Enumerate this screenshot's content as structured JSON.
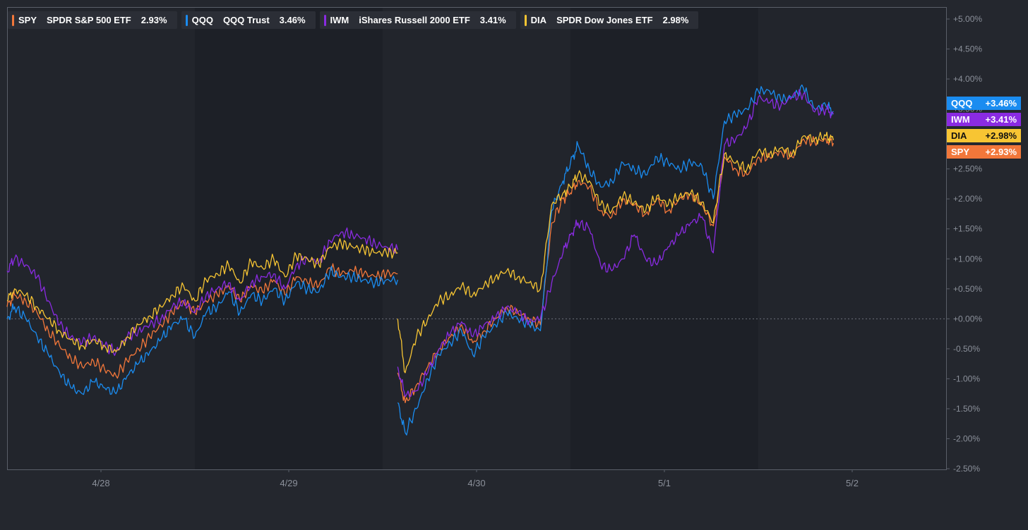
{
  "chart_data": {
    "type": "line",
    "title": "",
    "xlabel": "",
    "ylabel": "",
    "ylim": [
      -2.5,
      5.0
    ],
    "yticks": [
      "+5.00%",
      "+4.50%",
      "+4.00%",
      "+3.50%",
      "+3.00%",
      "+2.50%",
      "+2.00%",
      "+1.50%",
      "+1.00%",
      "+0.50%",
      "+0.00%",
      "-0.50%",
      "-1.00%",
      "-1.50%",
      "-2.00%",
      "-2.50%"
    ],
    "xticks": [
      "4/28",
      "4/29",
      "4/30",
      "5/1",
      "5/2"
    ],
    "xlim": [
      0,
      5
    ],
    "zero_line": true,
    "series": [
      {
        "ticker": "SPY",
        "name": "SPDR S&P 500 ETF",
        "last": "2.93%",
        "badge": "+2.93%",
        "color": "#f2773a",
        "badge_text_color": "#ffffff",
        "segments": [
          {
            "x": [
              0.0,
              0.04,
              0.1,
              0.16,
              0.22,
              0.28,
              0.34,
              0.4,
              0.46,
              0.52,
              0.58,
              0.64,
              0.7,
              0.76,
              0.82,
              0.88,
              0.94,
              1.0,
              1.06,
              1.12,
              1.18,
              1.24,
              1.3,
              1.36,
              1.42,
              1.48,
              1.54,
              1.6,
              1.66,
              1.72,
              1.78,
              1.84,
              1.9,
              1.96,
              2.02,
              2.08
            ],
            "y": [
              0.2,
              0.4,
              0.3,
              0.1,
              -0.2,
              -0.45,
              -0.65,
              -0.8,
              -0.7,
              -0.85,
              -0.95,
              -0.7,
              -0.5,
              -0.3,
              -0.1,
              0.1,
              0.3,
              0.1,
              0.3,
              0.4,
              0.55,
              0.3,
              0.55,
              0.45,
              0.65,
              0.4,
              0.7,
              0.6,
              0.55,
              0.85,
              0.75,
              0.8,
              0.75,
              0.7,
              0.75,
              0.75
            ]
          },
          {
            "x": [
              2.08,
              2.12,
              2.18,
              2.24,
              2.3,
              2.36,
              2.42,
              2.48,
              2.54,
              2.6,
              2.66,
              2.72,
              2.78,
              2.84,
              2.9,
              2.96,
              3.0,
              3.04,
              3.1,
              3.16,
              3.22,
              3.28,
              3.34,
              3.4,
              3.46,
              3.52,
              3.58,
              3.64,
              3.7,
              3.76,
              3.82,
              3.88,
              3.94,
              4.0,
              4.06,
              4.12,
              4.18,
              4.24,
              4.3,
              4.36,
              4.4
            ],
            "y": [
              -0.9,
              -1.4,
              -1.1,
              -0.8,
              -0.5,
              -0.3,
              -0.1,
              -0.4,
              -0.2,
              0.0,
              0.2,
              0.1,
              0.0,
              -0.1,
              1.6,
              2.0,
              2.1,
              2.3,
              2.2,
              1.8,
              1.7,
              2.0,
              1.9,
              1.75,
              2.0,
              1.8,
              2.0,
              2.1,
              1.9,
              1.55,
              2.7,
              2.5,
              2.4,
              2.7,
              2.7,
              2.8,
              2.7,
              3.0,
              2.95,
              3.0,
              2.93
            ]
          }
        ]
      },
      {
        "ticker": "QQQ",
        "name": "QQQ Trust",
        "last": "3.46%",
        "badge": "+3.46%",
        "color": "#1a8cf0",
        "badge_text_color": "#ffffff",
        "segments": [
          {
            "x": [
              0.0,
              0.04,
              0.1,
              0.16,
              0.22,
              0.28,
              0.34,
              0.4,
              0.46,
              0.52,
              0.58,
              0.64,
              0.7,
              0.76,
              0.82,
              0.88,
              0.94,
              1.0,
              1.06,
              1.12,
              1.18,
              1.24,
              1.3,
              1.36,
              1.42,
              1.48,
              1.54,
              1.6,
              1.66,
              1.72,
              1.78,
              1.84,
              1.9,
              1.96,
              2.02,
              2.08
            ],
            "y": [
              0.0,
              0.2,
              0.0,
              -0.3,
              -0.6,
              -0.9,
              -1.15,
              -1.25,
              -1.05,
              -1.15,
              -1.25,
              -0.95,
              -0.75,
              -0.55,
              -0.35,
              -0.1,
              0.0,
              -0.3,
              0.1,
              0.2,
              0.45,
              0.1,
              0.4,
              0.3,
              0.5,
              0.3,
              0.6,
              0.5,
              0.45,
              0.8,
              0.7,
              0.7,
              0.65,
              0.6,
              0.65,
              0.65
            ]
          },
          {
            "x": [
              2.08,
              2.12,
              2.18,
              2.24,
              2.3,
              2.36,
              2.42,
              2.48,
              2.54,
              2.6,
              2.66,
              2.72,
              2.78,
              2.84,
              2.9,
              2.96,
              3.0,
              3.04,
              3.1,
              3.16,
              3.22,
              3.28,
              3.34,
              3.4,
              3.46,
              3.52,
              3.58,
              3.64,
              3.7,
              3.76,
              3.82,
              3.88,
              3.94,
              4.0,
              4.06,
              4.12,
              4.18,
              4.24,
              4.3,
              4.36,
              4.4
            ],
            "y": [
              -1.4,
              -1.9,
              -1.5,
              -1.0,
              -0.6,
              -0.4,
              -0.2,
              -0.6,
              -0.3,
              -0.1,
              0.1,
              0.0,
              -0.1,
              -0.2,
              1.8,
              2.3,
              2.6,
              2.9,
              2.5,
              2.2,
              2.3,
              2.6,
              2.5,
              2.4,
              2.7,
              2.6,
              2.5,
              2.6,
              2.55,
              2.0,
              3.3,
              3.4,
              3.5,
              3.8,
              3.8,
              3.65,
              3.7,
              3.85,
              3.5,
              3.55,
              3.46
            ]
          }
        ]
      },
      {
        "ticker": "IWM",
        "name": "iShares Russell 2000 ETF",
        "last": "3.41%",
        "badge": "+3.41%",
        "color": "#8a2be2",
        "badge_text_color": "#ffffff",
        "segments": [
          {
            "x": [
              0.0,
              0.04,
              0.1,
              0.16,
              0.22,
              0.28,
              0.34,
              0.4,
              0.46,
              0.52,
              0.58,
              0.64,
              0.7,
              0.76,
              0.82,
              0.88,
              0.94,
              1.0,
              1.06,
              1.12,
              1.18,
              1.24,
              1.3,
              1.36,
              1.42,
              1.48,
              1.54,
              1.6,
              1.66,
              1.72,
              1.78,
              1.84,
              1.9,
              1.96,
              2.02,
              2.08
            ],
            "y": [
              0.8,
              1.0,
              0.9,
              0.7,
              0.3,
              -0.1,
              -0.3,
              -0.4,
              -0.3,
              -0.45,
              -0.55,
              -0.3,
              -0.2,
              -0.1,
              0.0,
              0.2,
              0.3,
              0.1,
              0.4,
              0.5,
              0.6,
              0.3,
              0.6,
              0.7,
              0.75,
              0.5,
              0.9,
              1.0,
              0.95,
              1.3,
              1.45,
              1.4,
              1.35,
              1.25,
              1.2,
              1.15
            ]
          },
          {
            "x": [
              2.08,
              2.12,
              2.18,
              2.24,
              2.3,
              2.36,
              2.42,
              2.48,
              2.54,
              2.6,
              2.66,
              2.72,
              2.78,
              2.84,
              2.9,
              2.96,
              3.0,
              3.04,
              3.1,
              3.16,
              3.22,
              3.28,
              3.34,
              3.4,
              3.46,
              3.52,
              3.58,
              3.64,
              3.7,
              3.76,
              3.82,
              3.88,
              3.94,
              4.0,
              4.06,
              4.12,
              4.18,
              4.24,
              4.3,
              4.36,
              4.4
            ],
            "y": [
              -0.8,
              -1.3,
              -1.2,
              -0.9,
              -0.5,
              -0.25,
              -0.05,
              -0.3,
              -0.1,
              0.0,
              0.2,
              0.1,
              -0.05,
              0.0,
              0.6,
              1.1,
              1.4,
              1.6,
              1.5,
              0.9,
              0.8,
              1.0,
              1.4,
              1.0,
              0.9,
              1.2,
              1.4,
              1.6,
              1.7,
              1.1,
              2.9,
              3.0,
              3.2,
              3.7,
              3.6,
              3.55,
              3.7,
              3.75,
              3.45,
              3.5,
              3.41
            ]
          }
        ]
      },
      {
        "ticker": "DIA",
        "name": "SPDR Dow Jones ETF",
        "last": "2.98%",
        "badge": "+2.98%",
        "color": "#f7c533",
        "badge_text_color": "#111111",
        "segments": [
          {
            "x": [
              0.0,
              0.04,
              0.1,
              0.16,
              0.22,
              0.28,
              0.34,
              0.4,
              0.46,
              0.52,
              0.58,
              0.64,
              0.7,
              0.76,
              0.82,
              0.88,
              0.94,
              1.0,
              1.06,
              1.12,
              1.18,
              1.24,
              1.3,
              1.36,
              1.42,
              1.48,
              1.54,
              1.6,
              1.66,
              1.72,
              1.78,
              1.84,
              1.9,
              1.96,
              2.02,
              2.08
            ],
            "y": [
              0.3,
              0.5,
              0.4,
              0.2,
              0.0,
              -0.2,
              -0.35,
              -0.45,
              -0.35,
              -0.45,
              -0.55,
              -0.3,
              -0.1,
              0.05,
              0.2,
              0.4,
              0.55,
              0.3,
              0.65,
              0.75,
              0.9,
              0.6,
              0.95,
              0.85,
              1.0,
              0.7,
              1.05,
              1.0,
              0.9,
              1.2,
              1.25,
              1.2,
              1.15,
              1.1,
              1.1,
              1.1
            ]
          },
          {
            "x": [
              2.08,
              2.12,
              2.18,
              2.24,
              2.3,
              2.36,
              2.42,
              2.48,
              2.54,
              2.6,
              2.66,
              2.72,
              2.78,
              2.84,
              2.9,
              2.96,
              3.0,
              3.04,
              3.1,
              3.16,
              3.22,
              3.28,
              3.34,
              3.4,
              3.46,
              3.52,
              3.58,
              3.64,
              3.7,
              3.76,
              3.82,
              3.88,
              3.94,
              4.0,
              4.06,
              4.12,
              4.18,
              4.24,
              4.3,
              4.36,
              4.4
            ],
            "y": [
              0.0,
              -0.9,
              -0.3,
              0.0,
              0.3,
              0.4,
              0.55,
              0.4,
              0.55,
              0.7,
              0.8,
              0.7,
              0.6,
              0.5,
              1.9,
              2.1,
              2.2,
              2.4,
              2.3,
              1.9,
              1.8,
              2.05,
              1.95,
              1.8,
              2.05,
              1.9,
              2.05,
              2.1,
              1.95,
              1.6,
              2.75,
              2.6,
              2.5,
              2.8,
              2.75,
              2.85,
              2.75,
              3.05,
              3.0,
              3.05,
              2.98
            ]
          }
        ]
      }
    ]
  }
}
